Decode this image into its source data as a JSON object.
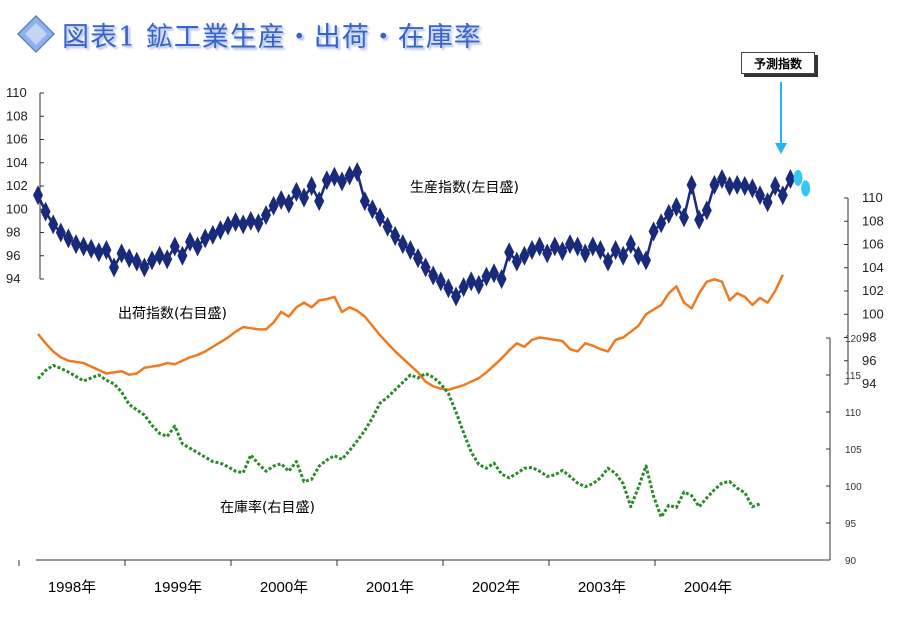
{
  "title": "図表1 鉱工業生産・出荷・在庫率",
  "forecast_label": "予測指数",
  "colors": {
    "production": "#1a2a7a",
    "forecast": "#36c8f0",
    "shipments": "#f07a20",
    "inventory": "#2a8a2a",
    "title": "#3a63c8",
    "arrow": "#22b8ee"
  },
  "annotations": {
    "production": "生産指数(左目盛)",
    "shipments": "出荷指数(右目盛)",
    "inventory": "在庫率(右目盛)"
  },
  "chart_data": {
    "type": "line",
    "x_labels": [
      "1998年",
      "1999年",
      "2000年",
      "2001年",
      "2002年",
      "2003年",
      "2004年"
    ],
    "x_start": "1998-01",
    "x_end": "2004-12",
    "axes": {
      "left": {
        "ticks": [
          94,
          96,
          98,
          100,
          102,
          104,
          106,
          108,
          110
        ],
        "range": [
          94,
          110
        ]
      },
      "right1": {
        "ticks": [
          94,
          96,
          98,
          100,
          102,
          104,
          106,
          108,
          110
        ],
        "range": [
          94,
          110
        ]
      },
      "right2": {
        "ticks": [
          90,
          95,
          100,
          105,
          110,
          115,
          120
        ],
        "range": [
          90,
          120
        ]
      }
    },
    "series": [
      {
        "name": "生産指数(左目盛)",
        "axis": "left",
        "marker": "diamond",
        "values": [
          101.2,
          99.8,
          98.7,
          98.0,
          97.5,
          97.0,
          96.8,
          96.6,
          96.3,
          96.5,
          95.0,
          96.2,
          95.8,
          95.5,
          95.0,
          95.6,
          96.0,
          95.7,
          96.8,
          96.0,
          97.2,
          96.8,
          97.5,
          97.8,
          98.2,
          98.6,
          98.9,
          98.7,
          99.0,
          98.8,
          99.5,
          100.3,
          100.8,
          100.5,
          101.5,
          101.0,
          102.0,
          100.7,
          102.5,
          102.8,
          102.4,
          102.9,
          103.2,
          100.7,
          100.0,
          99.3,
          98.5,
          97.7,
          97.0,
          96.5,
          95.8,
          95.0,
          94.3,
          93.8,
          93.2,
          92.5,
          93.3,
          93.8,
          93.5,
          94.2,
          94.5,
          94.0,
          96.3,
          95.5,
          96.0,
          96.5,
          96.8,
          96.2,
          96.8,
          96.4,
          97.0,
          96.8,
          96.2,
          96.8,
          96.5,
          95.5,
          96.5,
          96.0,
          97.0,
          96.0,
          95.6,
          98.1,
          98.8,
          99.6,
          100.2,
          99.3,
          102.1,
          99.1,
          99.9,
          102.1,
          102.6,
          102.0,
          102.1,
          102.0,
          101.8,
          101.2,
          100.6,
          102.0,
          101.2,
          102.6
        ]
      },
      {
        "name": "予測指数",
        "axis": "left",
        "marker": "ellipse",
        "values": [
          102.7,
          101.8
        ]
      },
      {
        "name": "出荷指数(右目盛)",
        "axis": "right1",
        "values": [
          98.3,
          97.5,
          96.8,
          96.3,
          96.0,
          95.9,
          95.8,
          95.5,
          95.2,
          94.9,
          95.0,
          95.1,
          94.8,
          94.9,
          95.4,
          95.5,
          95.6,
          95.8,
          95.7,
          96.0,
          96.3,
          96.5,
          96.8,
          97.2,
          97.6,
          98.0,
          98.5,
          98.9,
          98.8,
          98.7,
          98.7,
          99.3,
          100.2,
          99.8,
          100.6,
          101.0,
          100.6,
          101.2,
          101.3,
          101.5,
          100.2,
          100.6,
          100.3,
          99.8,
          99.0,
          98.2,
          97.5,
          96.8,
          96.2,
          95.6,
          95.0,
          94.2,
          93.8,
          93.6,
          93.5,
          93.7,
          93.9,
          94.2,
          94.5,
          95.0,
          95.6,
          96.2,
          96.9,
          97.5,
          97.2,
          97.8,
          98.0,
          97.9,
          97.8,
          97.7,
          97.0,
          96.8,
          97.5,
          97.3,
          97.0,
          96.8,
          97.8,
          98.0,
          98.5,
          99.0,
          100.0,
          100.4,
          100.8,
          101.8,
          102.4,
          101.0,
          100.5,
          101.8,
          102.8,
          103.0,
          102.8,
          101.2,
          101.8,
          101.5,
          100.8,
          101.4,
          101.0,
          102.0,
          103.4
        ]
      },
      {
        "name": "在庫率(右目盛)",
        "axis": "right2",
        "values": [
          114.5,
          115.6,
          116.3,
          115.9,
          115.4,
          114.8,
          114.2,
          114.6,
          115.0,
          114.3,
          113.8,
          112.7,
          111.0,
          110.3,
          109.6,
          108.2,
          107.1,
          106.7,
          108.1,
          105.7,
          105.1,
          104.5,
          103.9,
          103.3,
          103.1,
          102.6,
          102.0,
          101.8,
          104.2,
          103.0,
          102.0,
          102.7,
          103.0,
          102.0,
          103.3,
          100.6,
          100.9,
          102.7,
          103.5,
          104.1,
          103.6,
          104.8,
          106.1,
          107.5,
          109.2,
          111.2,
          112.0,
          113.0,
          114.0,
          115.0,
          114.6,
          115.2,
          114.7,
          113.8,
          112.5,
          110.0,
          107.2,
          104.6,
          102.9,
          102.4,
          103.1,
          101.6,
          101.1,
          101.7,
          102.4,
          102.5,
          102.0,
          101.3,
          101.5,
          102.1,
          101.3,
          100.4,
          99.9,
          100.3,
          101.1,
          102.4,
          101.7,
          100.3,
          97.2,
          99.8,
          102.7,
          98.6,
          95.8,
          97.4,
          97.1,
          99.2,
          98.7,
          97.2,
          98.4,
          99.5,
          100.4,
          100.6,
          99.7,
          99.1,
          97.2,
          97.6
        ]
      }
    ]
  }
}
